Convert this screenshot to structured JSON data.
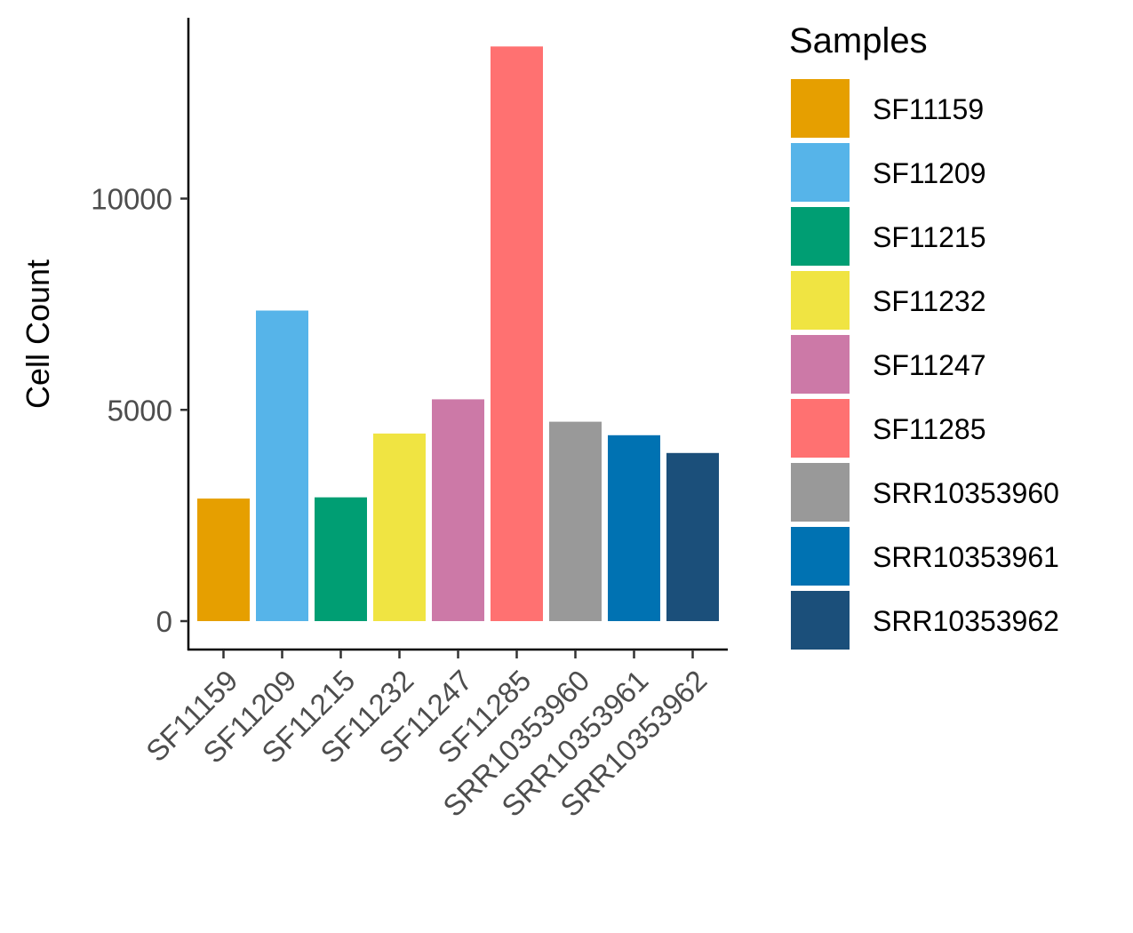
{
  "chart_data": {
    "type": "bar",
    "categories": [
      "SF11159",
      "SF11209",
      "SF11215",
      "SF11232",
      "SF11247",
      "SF11285",
      "SRR10353960",
      "SRR10353961",
      "SRR10353962"
    ],
    "values": [
      2900,
      7350,
      2930,
      4440,
      5250,
      13600,
      4720,
      4400,
      3980
    ],
    "colors": [
      "#E69F00",
      "#56B4E9",
      "#009E73",
      "#F0E442",
      "#CC79A7",
      "#FF7171",
      "#999999",
      "#0072B2",
      "#1B4F7A"
    ],
    "ylabel": "Cell Count",
    "xlabel": "",
    "yticks": [
      0,
      5000,
      10000
    ],
    "ylim": [
      0,
      14300
    ],
    "legend": {
      "title": "Samples",
      "position": "right"
    }
  }
}
